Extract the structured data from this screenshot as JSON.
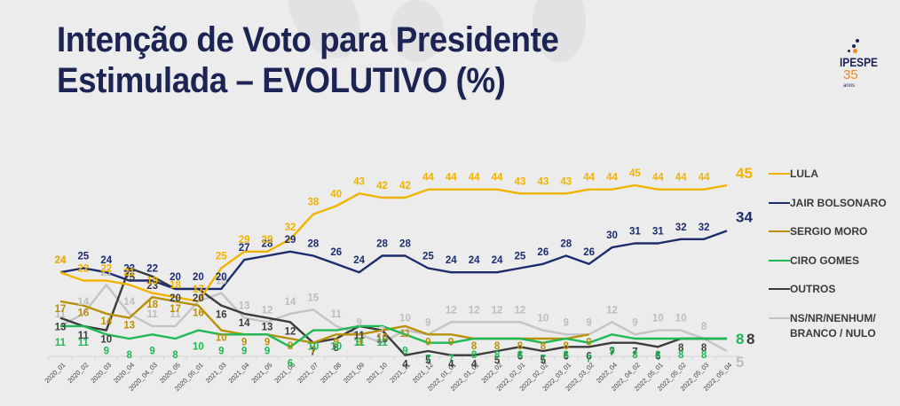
{
  "title_line1": "Intenção de Voto para Presidente",
  "title_line2": "Estimulada – EVOLUTIVO (%)",
  "logo": {
    "brand": "IPESPE",
    "years": "35",
    "anos": "anos"
  },
  "chart_data": {
    "type": "line",
    "title": "Intenção de Voto para Presidente Estimulada – EVOLUTIVO (%)",
    "xlabel": "",
    "ylabel": "",
    "legend_position": "right",
    "grid": false,
    "ylim": [
      0,
      50
    ],
    "x": [
      "2020_01",
      "2020_02",
      "2020_03",
      "2020_04",
      "2020_04_03",
      "2020_05",
      "2020_05_01",
      "2021_03",
      "2021_04",
      "2021_05",
      "2021_06",
      "2021_07",
      "2021_08",
      "2021_09",
      "2021_10",
      "2021_11",
      "2021_12",
      "2022_01_01",
      "2022_01_02",
      "2022_02",
      "2022_02_01",
      "2022_02_02",
      "2022_03_01",
      "2022_03_02",
      "2022_04",
      "2022_04_02",
      "2022_05_01",
      "2022_05_02",
      "2022_05_03",
      "2022_05_04"
    ],
    "series": [
      {
        "name": "LULA",
        "color": "#f0b400",
        "values": [
          24,
          22,
          22,
          21,
          19,
          18,
          17,
          25,
          29,
          29,
          32,
          38,
          40,
          43,
          42,
          42,
          44,
          44,
          44,
          44,
          43,
          43,
          43,
          44,
          44,
          45,
          44,
          44,
          44,
          45
        ]
      },
      {
        "name": "JAIR BOLSONARO",
        "color": "#1c2c6c",
        "values": [
          24,
          25,
          24,
          22,
          22,
          20,
          20,
          20,
          27,
          28,
          29,
          28,
          26,
          24,
          28,
          28,
          25,
          24,
          24,
          24,
          25,
          26,
          28,
          26,
          30,
          31,
          31,
          32,
          32,
          34
        ]
      },
      {
        "name": "SERGIO MORO",
        "color": "#b8900a",
        "values": [
          17,
          16,
          14,
          13,
          18,
          17,
          16,
          10,
          9,
          9,
          8,
          7,
          9,
          9,
          10,
          11,
          9,
          9,
          8,
          8,
          8,
          8,
          8,
          9,
          null,
          null,
          null,
          null,
          null,
          null
        ]
      },
      {
        "name": "CIRO GOMES",
        "color": "#1db954",
        "values": [
          11,
          11,
          9,
          8,
          9,
          8,
          10,
          9,
          9,
          9,
          6,
          10,
          10,
          11,
          11,
          9,
          7,
          7,
          8,
          8,
          8,
          7,
          8,
          7,
          9,
          8,
          8,
          8,
          8,
          8
        ]
      },
      {
        "name": "OUTROS",
        "color": "#3c3c3c",
        "values": [
          13,
          11,
          10,
          25,
          23,
          20,
          20,
          16,
          14,
          13,
          12,
          7,
          8,
          11,
          10,
          4,
          5,
          4,
          4,
          5,
          6,
          5,
          6,
          6,
          7,
          7,
          6,
          8,
          8,
          8
        ]
      },
      {
        "name": "NS/NR/NENHUM/\nBRANCO / NULO",
        "color": "#c4c4c4",
        "values": [
          11,
          14,
          21,
          14,
          11,
          11,
          17,
          19,
          13,
          12,
          14,
          15,
          11,
          9,
          7,
          10,
          9,
          12,
          12,
          12,
          12,
          10,
          9,
          9,
          12,
          9,
          10,
          10,
          8,
          5
        ]
      }
    ]
  }
}
